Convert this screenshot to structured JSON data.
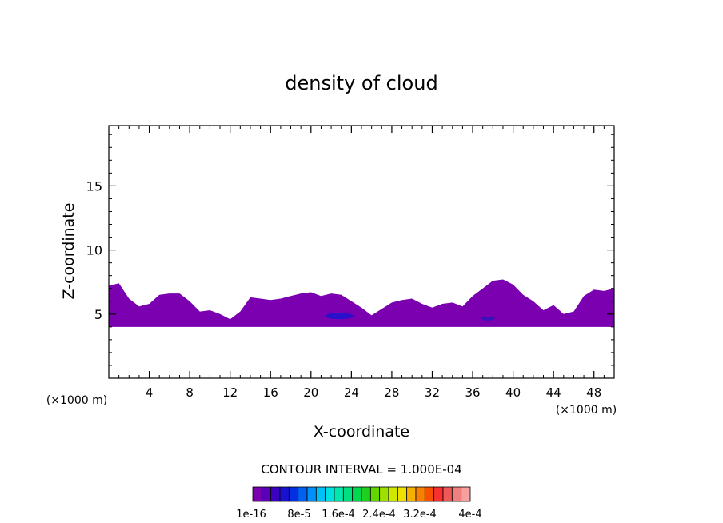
{
  "chart_data": {
    "type": "heatmap",
    "title": "density of cloud",
    "xlabel": "X-coordinate",
    "ylabel": "Z-coordinate",
    "x_unit_left": "(×1000 m)",
    "x_unit_right": "(×1000 m)",
    "xlim": [
      0,
      50
    ],
    "ylim": [
      0,
      19.7
    ],
    "x_ticks": [
      4,
      8,
      12,
      16,
      20,
      24,
      28,
      32,
      36,
      40,
      44,
      48
    ],
    "y_ticks": [
      5,
      10,
      15
    ],
    "contour_interval_text": "CONTOUR INTERVAL = 1.000E-04",
    "colorbar": {
      "colors": [
        "#7a00b0",
        "#5a00b8",
        "#3a00c0",
        "#1a10d0",
        "#0030e0",
        "#0060f0",
        "#0090f8",
        "#00c0f8",
        "#00e0e0",
        "#00e8b0",
        "#00e080",
        "#00d850",
        "#20d020",
        "#60d800",
        "#a0e000",
        "#d0e800",
        "#f0e000",
        "#f8b000",
        "#f88000",
        "#f85000",
        "#f83030",
        "#f05858",
        "#f08080",
        "#f8a0a0"
      ],
      "labels": [
        "1e-16",
        "8e-5",
        "1.6e-4",
        "2.4e-4",
        "3.2e-4",
        "4e-4"
      ]
    },
    "cloud_layer": {
      "z_base": 4.0,
      "color": "#7a00b0",
      "top_profile": [
        [
          0,
          7.2
        ],
        [
          1,
          7.4
        ],
        [
          2,
          6.2
        ],
        [
          3,
          5.6
        ],
        [
          4,
          5.8
        ],
        [
          5,
          6.5
        ],
        [
          6,
          6.6
        ],
        [
          7,
          6.6
        ],
        [
          8,
          6.0
        ],
        [
          9,
          5.2
        ],
        [
          10,
          5.3
        ],
        [
          11,
          5.0
        ],
        [
          12,
          4.6
        ],
        [
          13,
          5.2
        ],
        [
          14,
          6.3
        ],
        [
          15,
          6.2
        ],
        [
          16,
          6.1
        ],
        [
          17,
          6.2
        ],
        [
          18,
          6.4
        ],
        [
          19,
          6.6
        ],
        [
          20,
          6.7
        ],
        [
          21,
          6.4
        ],
        [
          22,
          6.6
        ],
        [
          23,
          6.5
        ],
        [
          24,
          6.0
        ],
        [
          25,
          5.5
        ],
        [
          26,
          4.9
        ],
        [
          27,
          5.4
        ],
        [
          28,
          5.9
        ],
        [
          29,
          6.1
        ],
        [
          30,
          6.2
        ],
        [
          31,
          5.8
        ],
        [
          32,
          5.5
        ],
        [
          33,
          5.8
        ],
        [
          34,
          5.9
        ],
        [
          35,
          5.6
        ],
        [
          36,
          6.4
        ],
        [
          37,
          7.0
        ],
        [
          38,
          7.6
        ],
        [
          39,
          7.7
        ],
        [
          40,
          7.3
        ],
        [
          41,
          6.5
        ],
        [
          42,
          6.0
        ],
        [
          43,
          5.3
        ],
        [
          44,
          5.7
        ],
        [
          45,
          5.0
        ],
        [
          46,
          5.2
        ],
        [
          47,
          6.4
        ],
        [
          48,
          6.9
        ],
        [
          49,
          6.8
        ],
        [
          50,
          7.0
        ]
      ],
      "dense_cores": [
        {
          "x": 22.8,
          "z": 4.85,
          "rx": 1.4,
          "rz": 0.25,
          "color": "#2a10c8"
        },
        {
          "x": 37.5,
          "z": 4.65,
          "rx": 0.7,
          "rz": 0.15,
          "color": "#3a10b8"
        }
      ]
    }
  }
}
